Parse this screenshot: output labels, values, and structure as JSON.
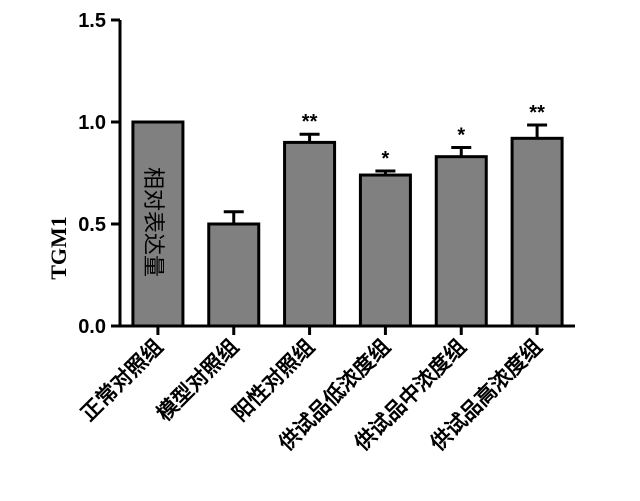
{
  "chart_data": {
    "type": "bar",
    "title": "",
    "xlabel": "",
    "ylabel": "TGM1",
    "ylabel_overlay": "相对表达量",
    "ylim": [
      0,
      1.5
    ],
    "yticks": [
      "0.0",
      "0.5",
      "1.0",
      "1.5"
    ],
    "ytick_values": [
      0,
      0.5,
      1.0,
      1.5
    ],
    "categories": [
      "正常对照组",
      "模型对照组",
      "阳性对照组",
      "供试品低浓度组",
      "供试品中浓度组",
      "供试品高浓度组"
    ],
    "values": [
      1.0,
      0.5,
      0.9,
      0.74,
      0.83,
      0.92
    ],
    "error_upper": [
      0.0,
      0.06,
      0.04,
      0.02,
      0.045,
      0.065
    ],
    "significance": [
      "",
      "",
      "**",
      "*",
      "*",
      "**"
    ],
    "bar_color": "#808080",
    "edge_color": "#000000",
    "grid": false,
    "legend": "none"
  }
}
